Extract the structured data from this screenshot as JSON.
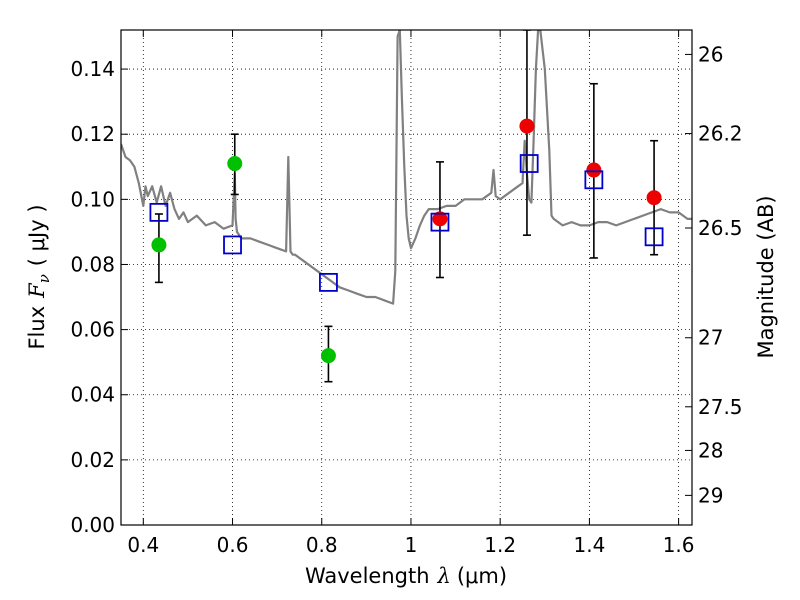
{
  "chart_data": {
    "type": "scatter",
    "xlabel_prefix": "Wavelength",
    "xlabel_symbol": "λ",
    "xlabel_unit": "(μm)",
    "ylabel_prefix": "Flux",
    "ylabel_symbol": "F",
    "ylabel_subscript": "ν",
    "ylabel_unit": "( μJy )",
    "y2label": "Magnitude (AB)",
    "xlim": [
      0.35,
      1.63
    ],
    "ylim": [
      0.0,
      0.152
    ],
    "x_ticks": [
      0.4,
      0.6,
      0.8,
      1.0,
      1.2,
      1.4,
      1.6
    ],
    "x_tick_labels": [
      "0.4",
      "0.6",
      "0.8",
      "1",
      "1.2",
      "1.4",
      "1.6"
    ],
    "y_ticks": [
      0.0,
      0.02,
      0.04,
      0.06,
      0.08,
      0.1,
      0.12,
      0.14
    ],
    "y_tick_labels": [
      "0.00",
      "0.02",
      "0.04",
      "0.06",
      "0.08",
      "0.10",
      "0.12",
      "0.14"
    ],
    "mag_ticks": [
      {
        "label": "26",
        "flux": 0.1445
      },
      {
        "label": "26.2",
        "flux": 0.1202
      },
      {
        "label": "26.5",
        "flux": 0.0912
      },
      {
        "label": "27",
        "flux": 0.0575
      },
      {
        "label": "27.5",
        "flux": 0.0363
      },
      {
        "label": "28",
        "flux": 0.0229
      },
      {
        "label": "29",
        "flux": 0.0091
      }
    ],
    "grid": true,
    "colors": {
      "model": "#808080",
      "green": "#00c000",
      "red": "#ee0000",
      "box": "#0000cc",
      "error": "#000000"
    },
    "model_spectrum": {
      "name": "SED model",
      "x": [
        0.35,
        0.36,
        0.37,
        0.38,
        0.39,
        0.4,
        0.405,
        0.41,
        0.42,
        0.43,
        0.44,
        0.45,
        0.46,
        0.47,
        0.48,
        0.49,
        0.5,
        0.52,
        0.54,
        0.56,
        0.58,
        0.6,
        0.605,
        0.607,
        0.61,
        0.62,
        0.64,
        0.66,
        0.68,
        0.7,
        0.72,
        0.725,
        0.73,
        0.735,
        0.74,
        0.76,
        0.78,
        0.8,
        0.82,
        0.84,
        0.86,
        0.88,
        0.9,
        0.92,
        0.94,
        0.96,
        0.965,
        0.97,
        0.975,
        0.98,
        0.985,
        0.99,
        0.995,
        1.0,
        1.01,
        1.02,
        1.03,
        1.04,
        1.06,
        1.08,
        1.1,
        1.12,
        1.14,
        1.16,
        1.18,
        1.185,
        1.19,
        1.2,
        1.22,
        1.24,
        1.25,
        1.255,
        1.26,
        1.265,
        1.27,
        1.275,
        1.28,
        1.285,
        1.29,
        1.3,
        1.31,
        1.315,
        1.32,
        1.33,
        1.34,
        1.36,
        1.38,
        1.4,
        1.42,
        1.44,
        1.46,
        1.48,
        1.5,
        1.52,
        1.54,
        1.56,
        1.58,
        1.6,
        1.62,
        1.63
      ],
      "y": [
        0.117,
        0.113,
        0.112,
        0.11,
        0.105,
        0.098,
        0.104,
        0.101,
        0.104,
        0.099,
        0.104,
        0.098,
        0.102,
        0.097,
        0.094,
        0.096,
        0.093,
        0.095,
        0.092,
        0.093,
        0.091,
        0.092,
        0.108,
        0.094,
        0.09,
        0.088,
        0.088,
        0.087,
        0.086,
        0.085,
        0.084,
        0.113,
        0.084,
        0.083,
        0.083,
        0.081,
        0.079,
        0.077,
        0.075,
        0.073,
        0.072,
        0.071,
        0.07,
        0.07,
        0.069,
        0.068,
        0.078,
        0.15,
        0.152,
        0.13,
        0.11,
        0.095,
        0.088,
        0.085,
        0.088,
        0.092,
        0.095,
        0.097,
        0.097,
        0.098,
        0.098,
        0.1,
        0.1,
        0.1,
        0.102,
        0.109,
        0.101,
        0.1,
        0.102,
        0.104,
        0.105,
        0.118,
        0.108,
        0.1,
        0.099,
        0.118,
        0.14,
        0.152,
        0.152,
        0.14,
        0.115,
        0.095,
        0.094,
        0.093,
        0.092,
        0.093,
        0.092,
        0.092,
        0.093,
        0.093,
        0.092,
        0.093,
        0.094,
        0.095,
        0.096,
        0.097,
        0.096,
        0.096,
        0.094,
        0.094
      ]
    },
    "series": [
      {
        "name": "green-points",
        "marker": "circle",
        "color": "#00c000",
        "points": [
          {
            "x": 0.435,
            "y": 0.086,
            "err_low": 0.0745,
            "err_high": 0.0955
          },
          {
            "x": 0.605,
            "y": 0.111,
            "err_low": 0.1015,
            "err_high": 0.12
          },
          {
            "x": 0.815,
            "y": 0.052,
            "err_low": 0.044,
            "err_high": 0.061
          }
        ]
      },
      {
        "name": "red-points",
        "marker": "circle",
        "color": "#ee0000",
        "points": [
          {
            "x": 1.065,
            "y": 0.094,
            "err_low": 0.076,
            "err_high": 0.1115
          },
          {
            "x": 1.26,
            "y": 0.1225,
            "err_low": 0.089,
            "err_high": 0.152
          },
          {
            "x": 1.41,
            "y": 0.109,
            "err_low": 0.082,
            "err_high": 0.1355
          },
          {
            "x": 1.545,
            "y": 0.1005,
            "err_low": 0.083,
            "err_high": 0.118
          }
        ]
      },
      {
        "name": "model-bands",
        "marker": "square",
        "color": "#0000cc",
        "points": [
          {
            "x": 0.435,
            "y": 0.096
          },
          {
            "x": 0.6,
            "y": 0.086
          },
          {
            "x": 0.815,
            "y": 0.0745
          },
          {
            "x": 1.065,
            "y": 0.093
          },
          {
            "x": 1.265,
            "y": 0.111
          },
          {
            "x": 1.41,
            "y": 0.106
          },
          {
            "x": 1.545,
            "y": 0.0885
          }
        ]
      }
    ]
  }
}
